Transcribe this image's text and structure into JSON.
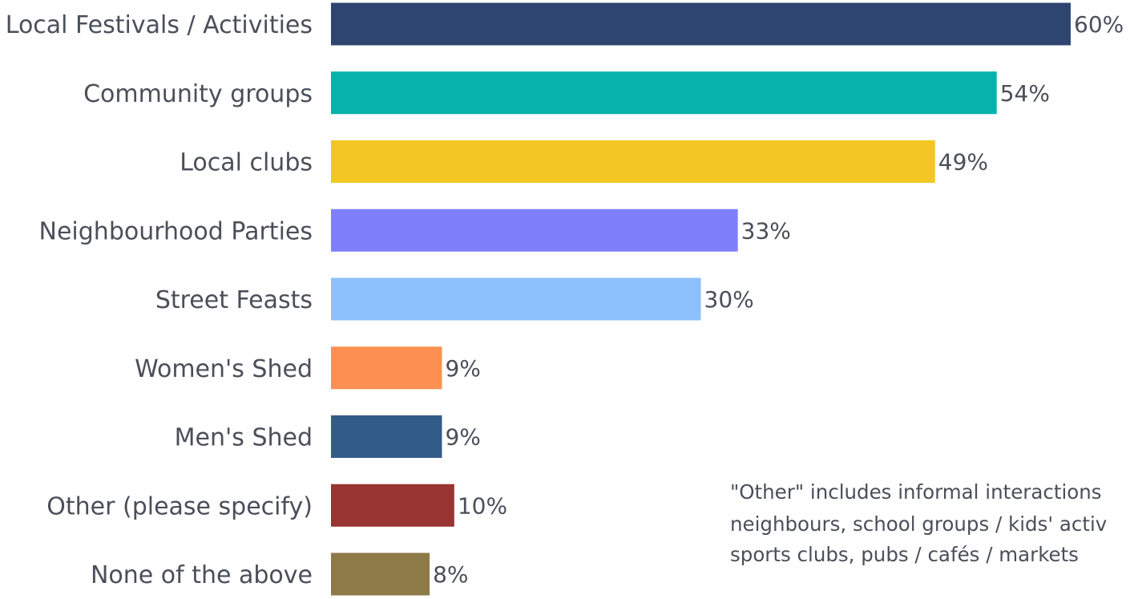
{
  "chart_data": {
    "type": "bar",
    "orientation": "horizontal",
    "categories": [
      "Local Festivals / Activities",
      "Community groups",
      "Local clubs",
      "Neighbourhood Parties",
      "Street Feasts",
      "Women's Shed",
      "Men's Shed",
      "Other (please specify)",
      "None of the above"
    ],
    "values": [
      60,
      54,
      49,
      33,
      30,
      9,
      9,
      10,
      8
    ],
    "value_labels": [
      "60%",
      "54%",
      "49%",
      "33%",
      "30%",
      "9%",
      "9%",
      "10%",
      "8%"
    ],
    "colors": [
      "#2e4571",
      "#05b3aa",
      "#f3c624",
      "#7f7ffb",
      "#8dc1fd",
      "#fd9050",
      "#335b8a",
      "#983431",
      "#8e7a47"
    ],
    "xlim": [
      0,
      60
    ],
    "grid": false,
    "legend": "none",
    "title": "",
    "xlabel": "",
    "ylabel": "",
    "annotation": {
      "lines": [
        "\"Other\" includes informal interactions",
        "neighbours, school groups / kids' activ",
        "sports clubs, pubs / cafés / markets"
      ]
    }
  }
}
